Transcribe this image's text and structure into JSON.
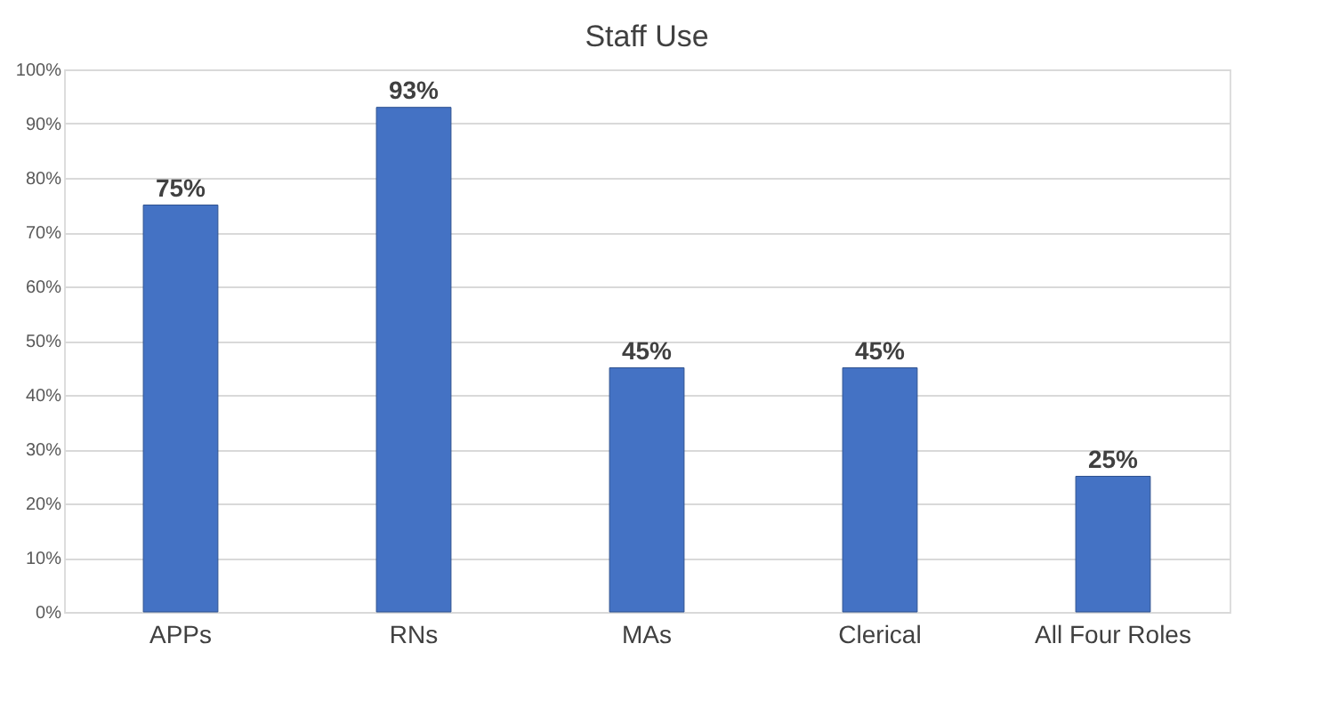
{
  "chart_data": {
    "type": "bar",
    "title": "Staff Use",
    "categories": [
      "APPs",
      "RNs",
      "MAs",
      "Clerical",
      "All Four Roles"
    ],
    "values": [
      75,
      93,
      45,
      45,
      25
    ],
    "value_labels": [
      "75%",
      "93%",
      "45%",
      "45%",
      "25%"
    ],
    "color": "#4472c4",
    "ylim": [
      0,
      100
    ],
    "yticks": [
      {
        "value": 0,
        "label": "0%"
      },
      {
        "value": 10,
        "label": "10%"
      },
      {
        "value": 20,
        "label": "20%"
      },
      {
        "value": 30,
        "label": "30%"
      },
      {
        "value": 40,
        "label": "40%"
      },
      {
        "value": 50,
        "label": "50%"
      },
      {
        "value": 60,
        "label": "60%"
      },
      {
        "value": 70,
        "label": "70%"
      },
      {
        "value": 80,
        "label": "80%"
      },
      {
        "value": 90,
        "label": "90%"
      },
      {
        "value": 100,
        "label": "100%"
      }
    ],
    "grid": "y"
  }
}
